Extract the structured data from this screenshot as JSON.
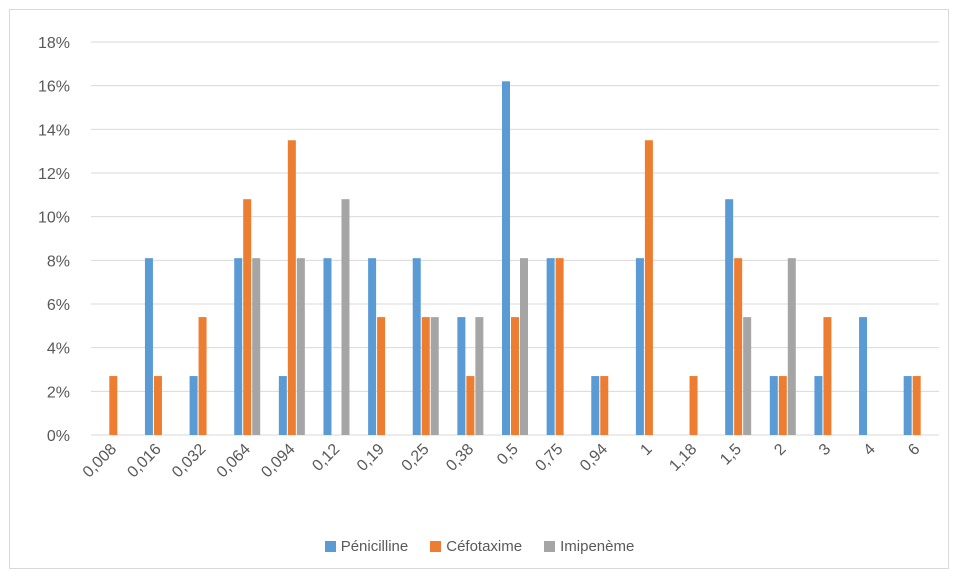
{
  "chart_data": {
    "type": "bar",
    "title": "",
    "xlabel": "",
    "ylabel": "",
    "ylim": [
      0,
      18
    ],
    "y_ticks": [
      "0%",
      "2%",
      "4%",
      "6%",
      "8%",
      "10%",
      "12%",
      "14%",
      "16%",
      "18%"
    ],
    "y_tick_values": [
      0,
      2,
      4,
      6,
      8,
      10,
      12,
      14,
      16,
      18
    ],
    "grid": true,
    "legend_position": "bottom",
    "categories": [
      "0,008",
      "0,016",
      "0,032",
      "0,064",
      "0,094",
      "0,12",
      "0,19",
      "0,25",
      "0,38",
      "0,5",
      "0,75",
      "0,94",
      "1",
      "1,18",
      "1,5",
      "2",
      "3",
      "4",
      "6"
    ],
    "series": [
      {
        "name": "Pénicilline",
        "color": "#5b9bd5",
        "values": [
          0,
          8.1,
          2.7,
          8.1,
          2.7,
          8.1,
          8.1,
          8.1,
          5.4,
          16.2,
          8.1,
          2.7,
          8.1,
          0,
          10.8,
          2.7,
          2.7,
          5.4,
          2.7
        ]
      },
      {
        "name": "Céfotaxime",
        "color": "#ed7d31",
        "values": [
          2.7,
          2.7,
          5.4,
          10.8,
          13.5,
          0,
          5.4,
          5.4,
          2.7,
          5.4,
          8.1,
          2.7,
          13.5,
          2.7,
          8.1,
          2.7,
          5.4,
          0,
          2.7
        ]
      },
      {
        "name": "Imipenème",
        "color": "#a5a5a5",
        "values": [
          0,
          0,
          0,
          8.1,
          8.1,
          10.8,
          0,
          5.4,
          5.4,
          8.1,
          0,
          0,
          0,
          0,
          5.4,
          8.1,
          0,
          0,
          0
        ]
      }
    ]
  }
}
